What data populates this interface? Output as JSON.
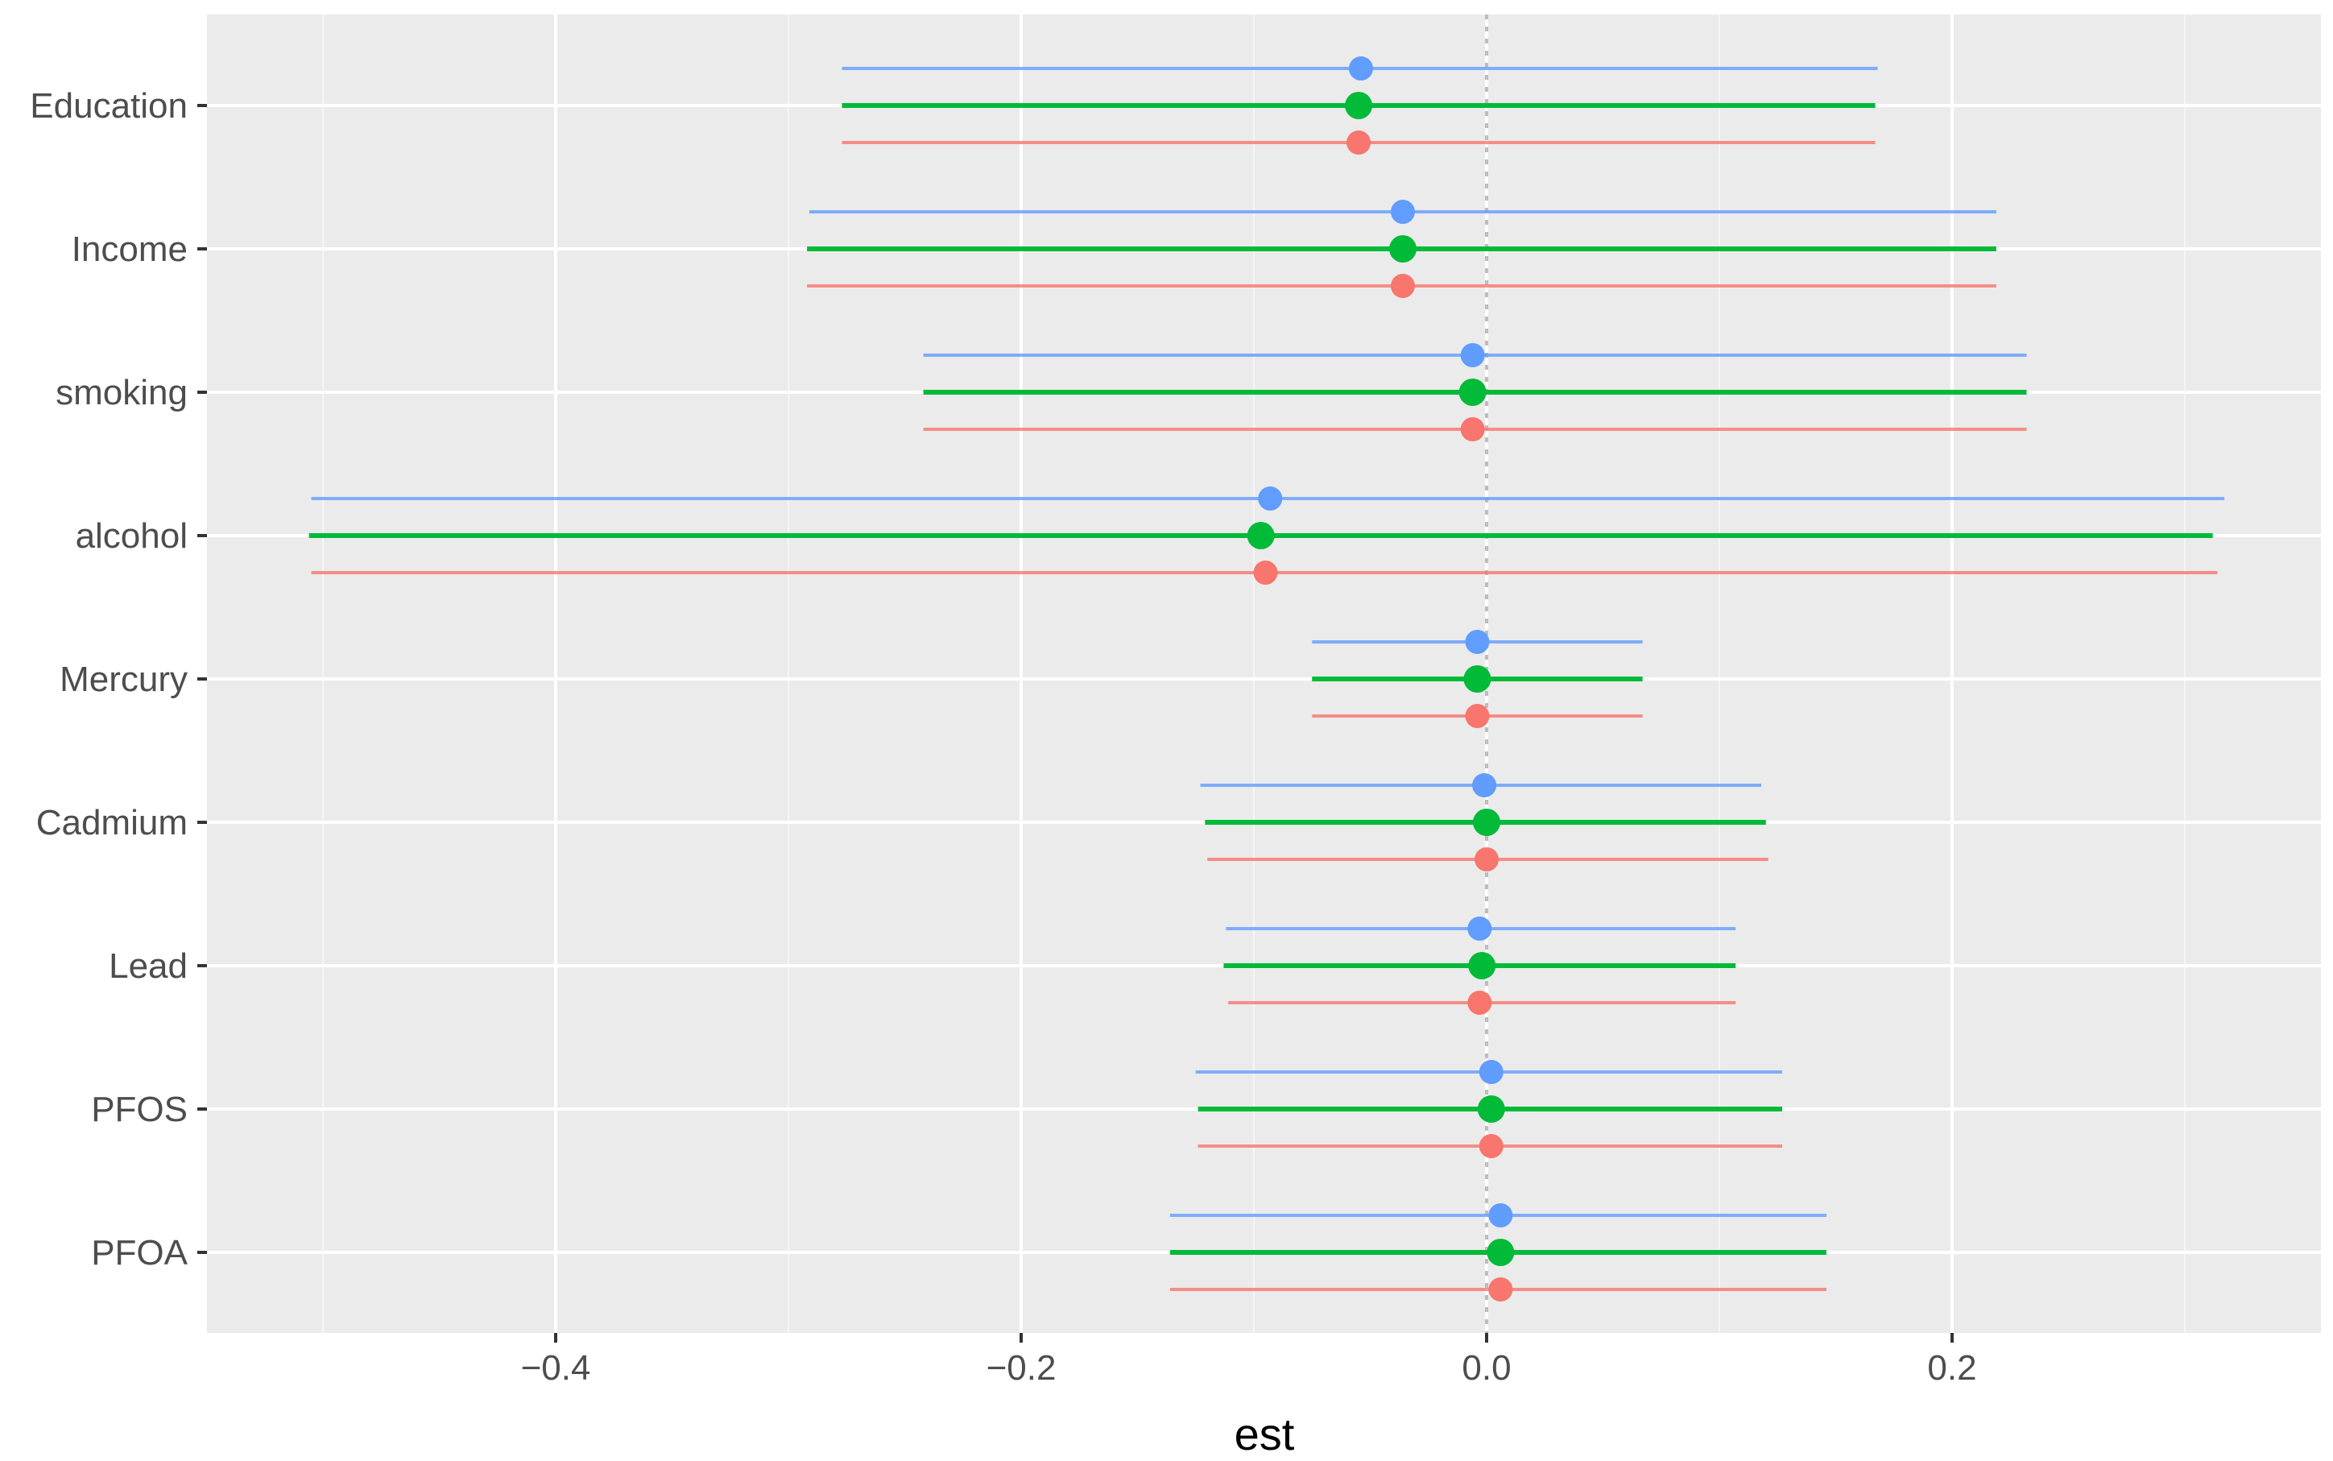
{
  "chart_data": {
    "type": "scatter",
    "subtype": "forest-plot",
    "title": "",
    "xlabel": "est",
    "ylabel": "",
    "xlim": [
      -0.55,
      0.355
    ],
    "x_ticks": [
      -0.4,
      -0.2,
      0.0,
      0.2
    ],
    "x_tick_labels": [
      "−0.4",
      "−0.2",
      "0.0",
      "0.2"
    ],
    "reference_line": 0,
    "grid": true,
    "legend": "none",
    "categories": [
      "Education",
      "Income",
      "smoking",
      "alcohol",
      "Mercury",
      "Cadmium",
      "Lead",
      "PFOS",
      "PFOA"
    ],
    "series": [
      {
        "color": "#619CFF",
        "est": [
          -0.054,
          -0.036,
          -0.006,
          -0.093,
          -0.004,
          -0.001,
          -0.003,
          0.002,
          0.006
        ],
        "lower": [
          -0.277,
          -0.291,
          -0.242,
          -0.505,
          -0.075,
          -0.123,
          -0.112,
          -0.125,
          -0.136
        ],
        "upper": [
          0.168,
          0.219,
          0.232,
          0.317,
          0.067,
          0.118,
          0.107,
          0.127,
          0.146
        ]
      },
      {
        "color": "#00BA38",
        "est": [
          -0.055,
          -0.036,
          -0.006,
          -0.097,
          -0.004,
          0.0,
          -0.002,
          0.002,
          0.006
        ],
        "lower": [
          -0.277,
          -0.292,
          -0.242,
          -0.506,
          -0.075,
          -0.121,
          -0.113,
          -0.124,
          -0.136
        ],
        "upper": [
          0.167,
          0.219,
          0.232,
          0.312,
          0.067,
          0.12,
          0.107,
          0.127,
          0.146
        ]
      },
      {
        "color": "#F8766D",
        "est": [
          -0.055,
          -0.036,
          -0.006,
          -0.095,
          -0.004,
          0.0,
          -0.003,
          0.002,
          0.006
        ],
        "lower": [
          -0.277,
          -0.292,
          -0.242,
          -0.505,
          -0.075,
          -0.12,
          -0.111,
          -0.124,
          -0.136
        ],
        "upper": [
          0.167,
          0.219,
          0.232,
          0.314,
          0.067,
          0.121,
          0.107,
          0.127,
          0.146
        ]
      }
    ]
  }
}
